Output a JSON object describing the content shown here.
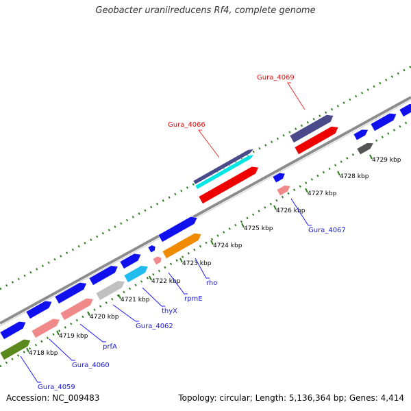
{
  "title": "Geobacter uraniireducens Rf4, complete genome",
  "footer": {
    "accession": "Accession: NC_009483",
    "summary": "Topology: circular; Length: 5,136,364 bp; Genes: 4,414"
  },
  "colors": {
    "backbone": "#8c8c8c",
    "tick": "#2e7d1e",
    "leader_blue": "#1a1aff",
    "leader_red": "#e03030",
    "label_blue": "#1a1acc",
    "label_red": "#dd1111"
  },
  "scale_ticks": [
    {
      "label": "4718 kbp"
    },
    {
      "label": "4719 kbp"
    },
    {
      "label": "4720 kbp"
    },
    {
      "label": "4721 kbp"
    },
    {
      "label": "4722 kbp"
    },
    {
      "label": "4723 kbp"
    },
    {
      "label": "4724 kbp"
    },
    {
      "label": "4725 kbp"
    },
    {
      "label": "4726 kbp"
    },
    {
      "label": "4727 kbp"
    },
    {
      "label": "4728 kbp"
    },
    {
      "label": "4729 kbp"
    }
  ],
  "gene_labels": [
    {
      "name": "Gura_4059",
      "color": "blue"
    },
    {
      "name": "Gura_4060",
      "color": "blue"
    },
    {
      "name": "prfA",
      "color": "blue"
    },
    {
      "name": "Gura_4062",
      "color": "blue"
    },
    {
      "name": "thyX",
      "color": "blue"
    },
    {
      "name": "rpmE",
      "color": "blue"
    },
    {
      "name": "rho",
      "color": "blue"
    },
    {
      "name": "Gura_4067",
      "color": "blue"
    },
    {
      "name": "Gura_4066",
      "color": "red"
    },
    {
      "name": "Gura_4069",
      "color": "red"
    }
  ],
  "features": [
    {
      "ring": "cds",
      "fill": "#1010ee"
    },
    {
      "ring": "cds",
      "fill": "#1010ee"
    },
    {
      "ring": "cds",
      "fill": "#1010ee"
    },
    {
      "ring": "cds",
      "fill": "#1010ee"
    },
    {
      "ring": "cds",
      "fill": "#1010ee"
    },
    {
      "ring": "cds",
      "fill": "#1010ee"
    },
    {
      "ring": "cds",
      "fill": "#1010ee"
    },
    {
      "ring": "cds",
      "fill": "#1010ee"
    },
    {
      "ring": "cds",
      "fill": "#1010ee"
    },
    {
      "ring": "cds",
      "fill": "#1010ee"
    },
    {
      "ring": "cds",
      "fill": "#1010ee"
    },
    {
      "ring": "cds",
      "fill": "#1010ee"
    },
    {
      "ring": "cds",
      "fill": "#1010ee"
    },
    {
      "ring": "cog",
      "fill": "#5a8a1e"
    },
    {
      "ring": "cog",
      "fill": "#f08a8a"
    },
    {
      "ring": "cog",
      "fill": "#f08a8a"
    },
    {
      "ring": "cog",
      "fill": "#c0c0c0"
    },
    {
      "ring": "cog",
      "fill": "#22bbee"
    },
    {
      "ring": "cog",
      "fill": "#f08a8a"
    },
    {
      "ring": "cog",
      "fill": "#f08a00"
    },
    {
      "ring": "cog",
      "fill": "#f08a8a"
    },
    {
      "ring": "cog",
      "fill": "#555555"
    },
    {
      "ring": "rev",
      "fill": "#4a4a8a"
    },
    {
      "ring": "rev",
      "fill": "#00e5e5"
    },
    {
      "ring": "rev",
      "fill": "#ee0000"
    },
    {
      "ring": "rev",
      "fill": "#4a4a8a"
    },
    {
      "ring": "rev",
      "fill": "#ee0000"
    }
  ]
}
